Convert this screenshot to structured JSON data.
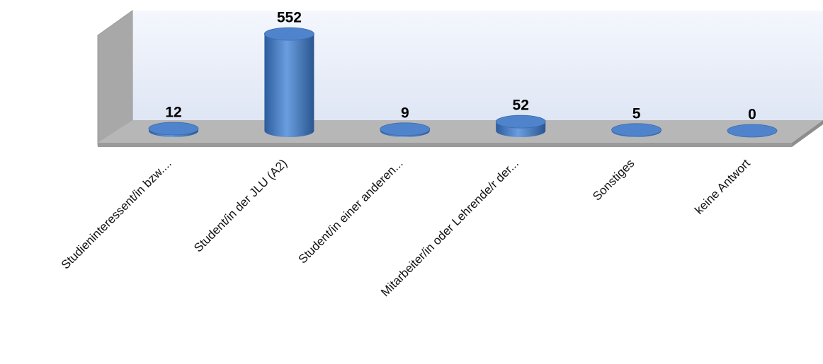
{
  "chart_data": {
    "type": "bar3d",
    "categories": [
      "Studieninteressent/in bzw....",
      "Student/in der JLU (A2)",
      "Student/in einer anderen...",
      "Mitarbeiter/in oder Lehrende/r der...",
      "Sonstiges",
      "keine Antwort"
    ],
    "values": [
      12,
      552,
      9,
      52,
      5,
      0
    ],
    "color": "#4a7fc8"
  }
}
